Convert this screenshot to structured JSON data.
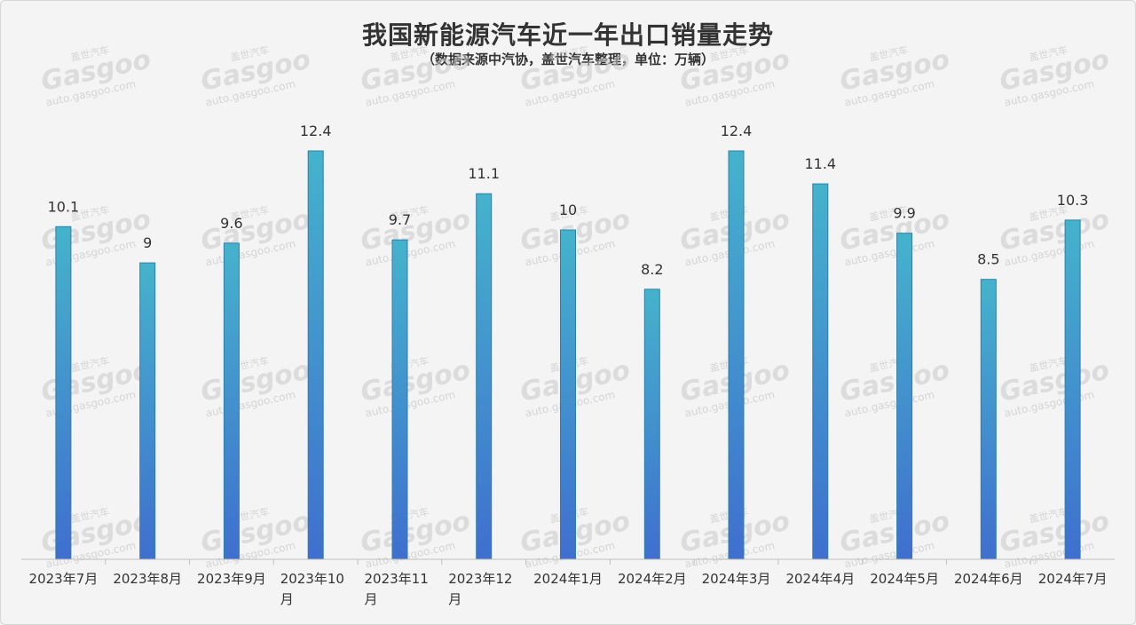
{
  "chart_data": {
    "type": "bar",
    "title": "我国新能源汽车近一年出口销量走势",
    "subtitle": "（数据来源中汽协，盖世汽车整理，单位：万辆）",
    "categories": [
      [
        "2023年7月"
      ],
      [
        "2023年8月"
      ],
      [
        "2023年9月"
      ],
      [
        "2023年10",
        "月"
      ],
      [
        "2023年11",
        "月"
      ],
      [
        "2023年12",
        "月"
      ],
      [
        "2024年1月"
      ],
      [
        "2024年2月"
      ],
      [
        "2024年3月"
      ],
      [
        "2024年4月"
      ],
      [
        "2024年5月"
      ],
      [
        "2024年6月"
      ],
      [
        "2024年7月"
      ]
    ],
    "values": [
      10.1,
      9,
      9.6,
      12.4,
      9.7,
      11.1,
      10,
      8.2,
      12.4,
      11.4,
      9.9,
      8.5,
      10.3
    ],
    "ylim": [
      0,
      12.4
    ],
    "grid": false,
    "colors": {
      "bar_top": "#45b3cc",
      "bar_bottom": "#3f6fcf",
      "bar_stroke": "#2f7fa8"
    }
  },
  "watermark": {
    "brand": "Gasgoo",
    "cn": "盖世汽车",
    "url": "auto.gasgoo.com"
  }
}
